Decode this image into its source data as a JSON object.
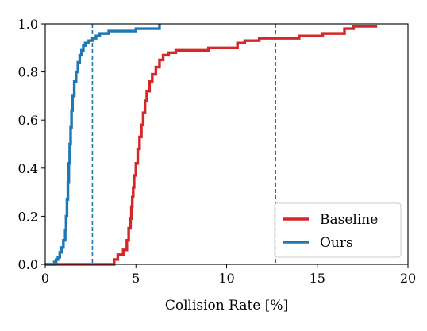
{
  "chart_data": {
    "type": "line",
    "chart_kind": "step cumulative distribution",
    "xlabel": "Collision Rate [%]",
    "ylabel": "",
    "xlim": [
      0,
      20
    ],
    "ylim": [
      0.0,
      1.0
    ],
    "xticks": [
      "0",
      "5",
      "10",
      "15",
      "20"
    ],
    "yticks": [
      "0.0",
      "0.2",
      "0.4",
      "0.6",
      "0.8",
      "1.0"
    ],
    "grid": false,
    "legend_position": "lower-right",
    "series": [
      {
        "name": "Baseline",
        "color": "#d62728",
        "x": [
          0.0,
          3.6,
          3.8,
          4.0,
          4.3,
          4.5,
          4.6,
          4.7,
          4.75,
          4.8,
          4.85,
          4.9,
          5.0,
          5.1,
          5.2,
          5.3,
          5.4,
          5.5,
          5.6,
          5.75,
          5.9,
          6.1,
          6.3,
          6.5,
          6.8,
          7.2,
          7.5,
          8.0,
          9.0,
          10.0,
          10.6,
          11.0,
          11.8,
          13.0,
          14.0,
          15.3,
          16.0,
          16.5,
          17.0,
          18.3
        ],
        "y": [
          0.0,
          0.0,
          0.02,
          0.04,
          0.06,
          0.1,
          0.15,
          0.19,
          0.24,
          0.28,
          0.32,
          0.37,
          0.42,
          0.48,
          0.53,
          0.58,
          0.63,
          0.68,
          0.72,
          0.76,
          0.79,
          0.82,
          0.85,
          0.87,
          0.88,
          0.89,
          0.89,
          0.89,
          0.9,
          0.9,
          0.92,
          0.93,
          0.94,
          0.94,
          0.95,
          0.96,
          0.96,
          0.98,
          0.99,
          0.99
        ]
      },
      {
        "name": "Ours",
        "color": "#1f77b4",
        "x": [
          0.0,
          0.5,
          0.6,
          0.7,
          0.8,
          0.9,
          1.0,
          1.1,
          1.15,
          1.2,
          1.25,
          1.3,
          1.35,
          1.4,
          1.45,
          1.5,
          1.6,
          1.7,
          1.8,
          1.9,
          2.0,
          2.1,
          2.2,
          2.4,
          2.6,
          2.8,
          3.0,
          3.5,
          4.0,
          5.0,
          6.3
        ],
        "y": [
          0.0,
          0.01,
          0.02,
          0.03,
          0.05,
          0.07,
          0.1,
          0.14,
          0.2,
          0.27,
          0.34,
          0.42,
          0.5,
          0.57,
          0.64,
          0.7,
          0.76,
          0.8,
          0.84,
          0.87,
          0.89,
          0.91,
          0.92,
          0.93,
          0.94,
          0.95,
          0.96,
          0.97,
          0.97,
          0.98,
          1.0
        ]
      }
    ],
    "reference_lines": [
      {
        "series": "Ours",
        "x": 2.6,
        "style": "dashed",
        "color": "#1f77b4"
      },
      {
        "series": "Baseline",
        "x": 12.7,
        "style": "dashed",
        "color": "#d62728"
      }
    ]
  }
}
